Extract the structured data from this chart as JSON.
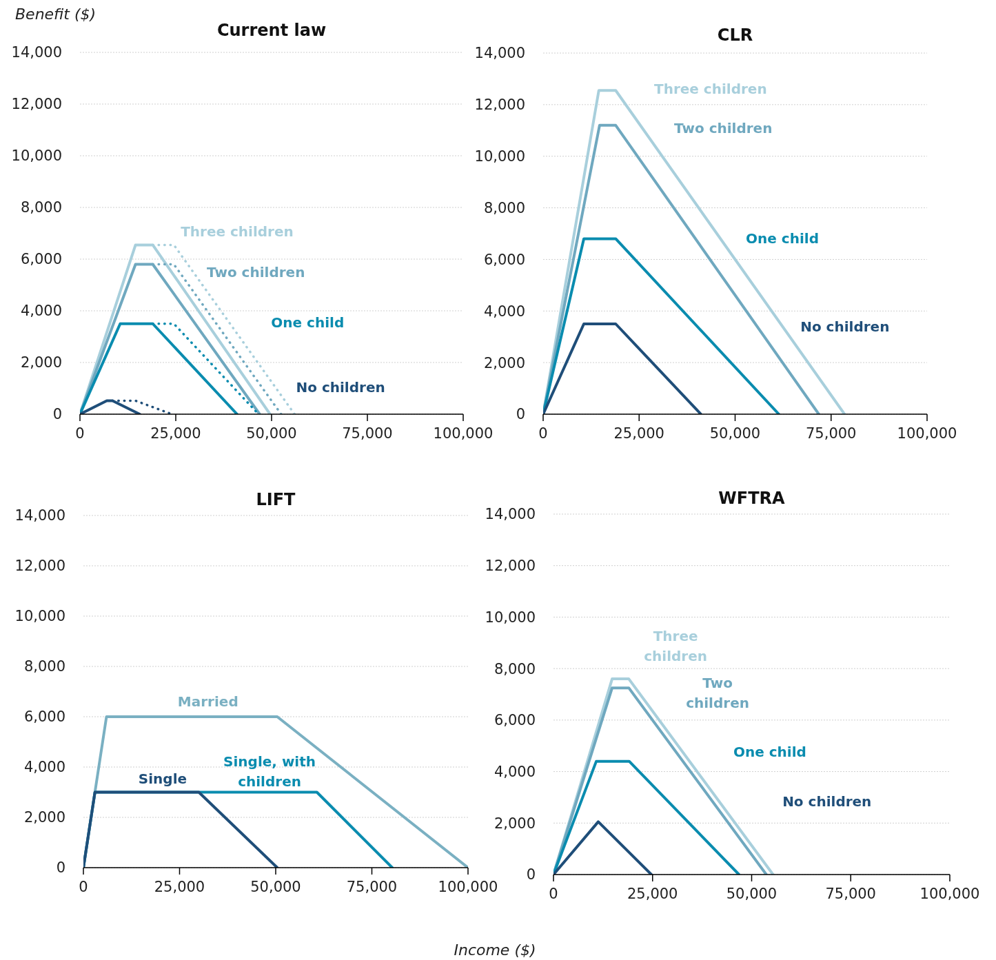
{
  "chart_data": [
    {
      "type": "line",
      "title": "Current law",
      "ylabel": "Benefit ($)",
      "xlim": [
        0,
        100000
      ],
      "xticks": [
        {
          "value": 0,
          "label": "0"
        },
        {
          "value": 25000,
          "label": "25,000"
        },
        {
          "value": 50000,
          "label": "50,000"
        },
        {
          "value": 75000,
          "label": "75,000"
        },
        {
          "value": 100000,
          "label": "100,000"
        }
      ],
      "ylim": [
        0,
        14000
      ],
      "yticks": [
        {
          "value": 0,
          "label": "0"
        },
        {
          "value": 2000,
          "label": "2,000"
        },
        {
          "value": 4000,
          "label": "4,000"
        },
        {
          "value": 6000,
          "label": "6,000"
        },
        {
          "value": 8000,
          "label": "8,000"
        },
        {
          "value": 10000,
          "label": "10,000"
        },
        {
          "value": 12000,
          "label": "12,000"
        },
        {
          "value": 14000,
          "label": "14,000"
        }
      ],
      "grid": "y",
      "series": [
        {
          "name": "Three  children",
          "color": "#a8cfdc",
          "x": [
            0,
            14500,
            19000,
            49600
          ],
          "values": [
            0,
            6550,
            6550,
            0
          ]
        },
        {
          "name": "Two children",
          "color": "#6fa8bf",
          "x": [
            0,
            14500,
            19000,
            46900
          ],
          "values": [
            0,
            5800,
            5800,
            0
          ]
        },
        {
          "name": "One child",
          "color": "#0a8caf",
          "x": [
            0,
            10500,
            19000,
            41000
          ],
          "values": [
            0,
            3500,
            3500,
            0
          ]
        },
        {
          "name": "No children",
          "color": "#1f4e79",
          "x": [
            0,
            7000,
            8500,
            15600
          ],
          "values": [
            0,
            520,
            520,
            0
          ]
        },
        {
          "color": "#a8cfdc",
          "line_style": "dotted",
          "x": [
            19000,
            24500,
            56000
          ],
          "values": [
            6550,
            6550,
            0
          ]
        },
        {
          "color": "#6fa8bf",
          "line_style": "dotted",
          "x": [
            19000,
            24500,
            52500
          ],
          "values": [
            5800,
            5800,
            0
          ]
        },
        {
          "color": "#0a8caf",
          "line_style": "dotted",
          "x": [
            19000,
            24500,
            46600
          ],
          "values": [
            3500,
            3500,
            0
          ]
        },
        {
          "color": "#1f4e79",
          "line_style": "dotted",
          "x": [
            8500,
            14500,
            24000
          ],
          "values": [
            520,
            520,
            0
          ]
        }
      ]
    },
    {
      "type": "line",
      "title": "CLR",
      "xlim": [
        0,
        100000
      ],
      "xticks": [
        {
          "value": 0,
          "label": "0"
        },
        {
          "value": 25000,
          "label": "25,000"
        },
        {
          "value": 50000,
          "label": "50,000"
        },
        {
          "value": 75000,
          "label": "75,000"
        },
        {
          "value": 100000,
          "label": "100,000"
        }
      ],
      "ylim": [
        0,
        14000
      ],
      "yticks": [
        {
          "value": 0,
          "label": "0"
        },
        {
          "value": 2000,
          "label": "2,000"
        },
        {
          "value": 4000,
          "label": "4,000"
        },
        {
          "value": 6000,
          "label": "6,000"
        },
        {
          "value": 8000,
          "label": "8,000"
        },
        {
          "value": 10000,
          "label": "10,000"
        },
        {
          "value": 12000,
          "label": "12,000"
        },
        {
          "value": 14000,
          "label": "14,000"
        }
      ],
      "grid": "y",
      "series": [
        {
          "name": "Three  children",
          "color": "#a8cfdc",
          "x": [
            0,
            14500,
            18900,
            78500
          ],
          "values": [
            0,
            12550,
            12550,
            0
          ]
        },
        {
          "name": "Two children",
          "color": "#6fa8bf",
          "x": [
            0,
            14700,
            18900,
            71800
          ],
          "values": [
            0,
            11200,
            11200,
            0
          ]
        },
        {
          "name": "One child",
          "color": "#0a8caf",
          "x": [
            0,
            10600,
            18900,
            61400
          ],
          "values": [
            0,
            6800,
            6800,
            0
          ]
        },
        {
          "name": "No children",
          "color": "#1f4e79",
          "x": [
            0,
            10600,
            18900,
            41100
          ],
          "values": [
            0,
            3500,
            3500,
            0
          ]
        }
      ]
    },
    {
      "type": "line",
      "title": "LIFT",
      "xlabel": "Income ($)",
      "xlim": [
        0,
        100000
      ],
      "xticks": [
        {
          "value": 0,
          "label": "0"
        },
        {
          "value": 25000,
          "label": "25,000"
        },
        {
          "value": 50000,
          "label": "50,000"
        },
        {
          "value": 75000,
          "label": "75,000"
        },
        {
          "value": 100000,
          "label": "100,000"
        }
      ],
      "ylim": [
        0,
        14000
      ],
      "yticks": [
        {
          "value": 0,
          "label": "0"
        },
        {
          "value": 2000,
          "label": "2,000"
        },
        {
          "value": 4000,
          "label": "4,000"
        },
        {
          "value": 6000,
          "label": "6,000"
        },
        {
          "value": 8000,
          "label": "8,000"
        },
        {
          "value": 10000,
          "label": "10,000"
        },
        {
          "value": 12000,
          "label": "12,000"
        },
        {
          "value": 14000,
          "label": "14,000"
        }
      ],
      "grid": "y",
      "series": [
        {
          "name": "Married",
          "color": "#7ab0c2",
          "x": [
            0,
            3000,
            6000,
            50400,
            100000
          ],
          "values": [
            0,
            3000,
            6000,
            6000,
            0
          ]
        },
        {
          "name": "Single,  with children",
          "color": "#0a8caf",
          "x": [
            0,
            3000,
            60700,
            80300
          ],
          "values": [
            0,
            3000,
            3000,
            0
          ]
        },
        {
          "name": "Single",
          "color": "#1f4e79",
          "x": [
            0,
            3000,
            30000,
            50400
          ],
          "values": [
            0,
            3000,
            3000,
            0
          ]
        }
      ]
    },
    {
      "type": "line",
      "title": "WFTRA",
      "xlim": [
        0,
        100000
      ],
      "xticks": [
        {
          "value": 0,
          "label": "0"
        },
        {
          "value": 25000,
          "label": "25,000"
        },
        {
          "value": 50000,
          "label": "50,000"
        },
        {
          "value": 75000,
          "label": "75,000"
        },
        {
          "value": 100000,
          "label": "100,000"
        }
      ],
      "ylim": [
        0,
        14000
      ],
      "yticks": [
        {
          "value": 0,
          "label": "0"
        },
        {
          "value": 2000,
          "label": "2,000"
        },
        {
          "value": 4000,
          "label": "4,000"
        },
        {
          "value": 6000,
          "label": "6,000"
        },
        {
          "value": 8000,
          "label": "8,000"
        },
        {
          "value": 10000,
          "label": "10,000"
        },
        {
          "value": 12000,
          "label": "12,000"
        },
        {
          "value": 14000,
          "label": "14,000"
        }
      ],
      "grid": "y",
      "series": [
        {
          "name": "Three children",
          "color": "#a8cfdc",
          "x": [
            0,
            14800,
            19000,
            55400
          ],
          "values": [
            0,
            7600,
            7600,
            0
          ]
        },
        {
          "name": "Two children",
          "color": "#6fa8bf",
          "x": [
            0,
            14800,
            19000,
            53700
          ],
          "values": [
            0,
            7250,
            7250,
            0
          ]
        },
        {
          "name": "One child",
          "color": "#0a8caf",
          "x": [
            0,
            10800,
            19100,
            46800
          ],
          "values": [
            0,
            4400,
            4400,
            0
          ]
        },
        {
          "name": "No children",
          "color": "#1f4e79",
          "x": [
            0,
            11300,
            24700
          ],
          "values": [
            0,
            2050,
            0
          ]
        }
      ]
    }
  ]
}
